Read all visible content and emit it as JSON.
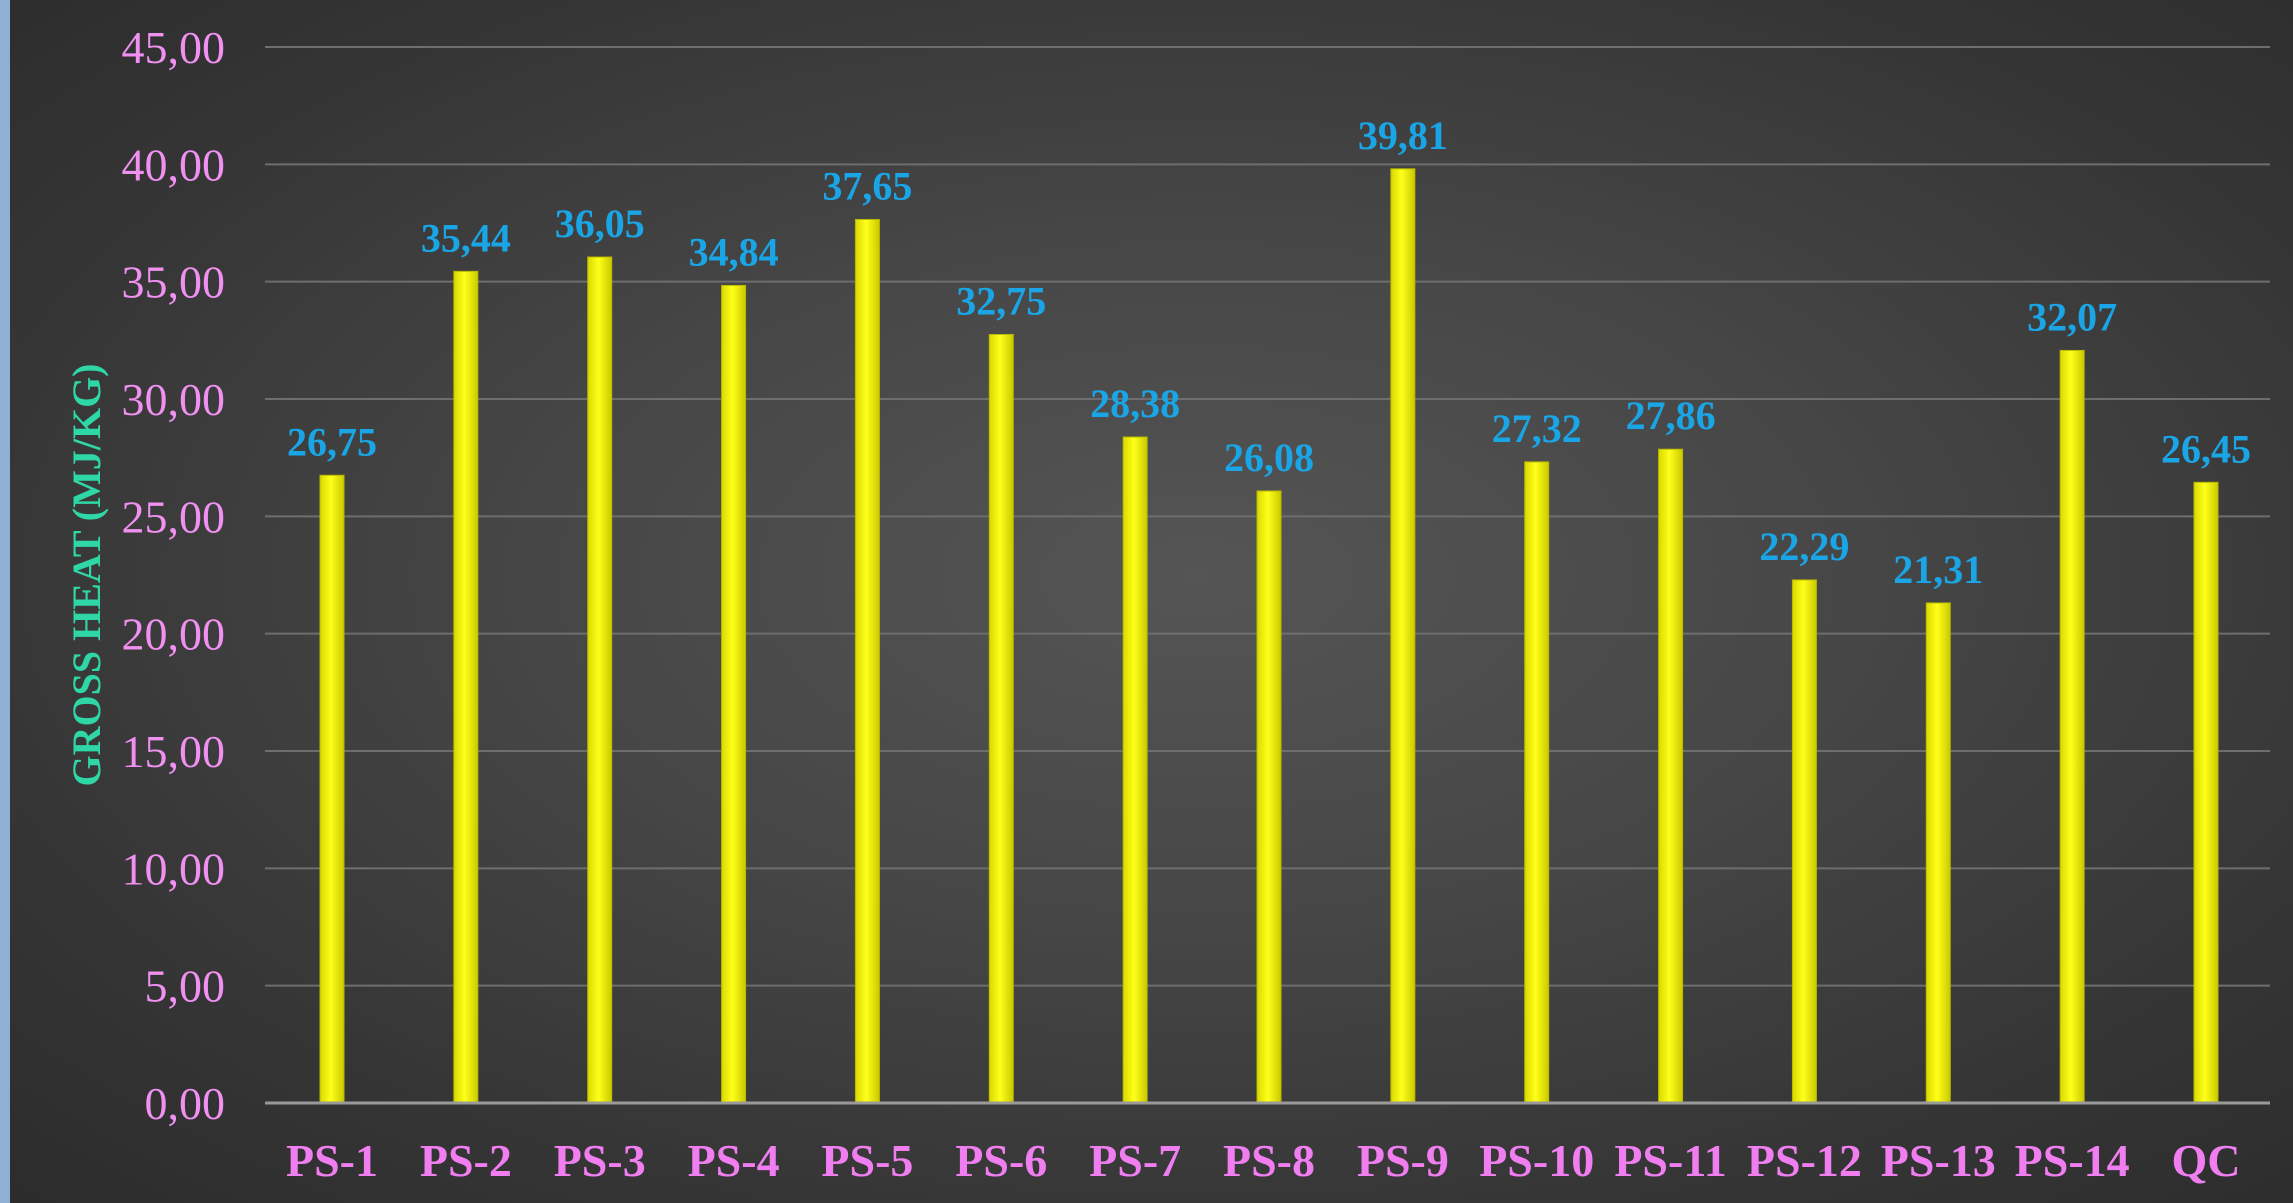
{
  "chart_data": {
    "type": "bar",
    "title": "",
    "xlabel": "",
    "ylabel": "GROSS HEAT (MJ/KG)",
    "ylim": [
      0,
      45
    ],
    "y_ticks": [
      "0,00",
      "5,00",
      "10,00",
      "15,00",
      "20,00",
      "25,00",
      "30,00",
      "35,00",
      "40,00",
      "45,00"
    ],
    "categories": [
      "PS-1",
      "PS-2",
      "PS-3",
      "PS-4",
      "PS-5",
      "PS-6",
      "PS-7",
      "PS-8",
      "PS-9",
      "PS-10",
      "PS-11",
      "PS-12",
      "PS-13",
      "PS-14",
      "QC"
    ],
    "values": [
      26.75,
      35.44,
      36.05,
      34.84,
      37.65,
      32.75,
      28.38,
      26.08,
      39.81,
      27.32,
      27.86,
      22.29,
      21.31,
      32.07,
      26.45
    ],
    "data_labels": [
      "26,75",
      "35,44",
      "36,05",
      "34,84",
      "37,65",
      "32,75",
      "28,38",
      "26,08",
      "39,81",
      "27,32",
      "27,86",
      "22,29",
      "21,31",
      "32,07",
      "26,45"
    ],
    "grid": true,
    "legend": "none",
    "colors": {
      "bar": "#f5f500",
      "bar_edge": "#b8b800",
      "gridline": "#6e6e6e",
      "axis": "#9a9a9a"
    }
  }
}
